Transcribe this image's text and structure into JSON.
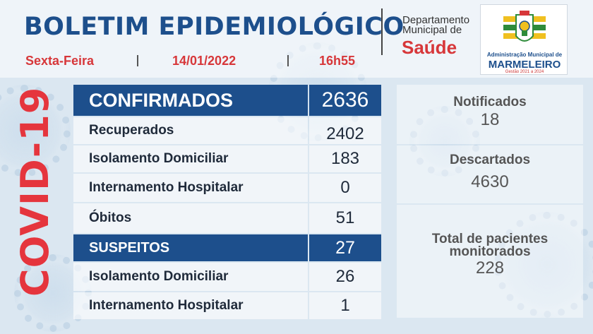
{
  "header": {
    "title": "BOLETIM EPIDEMIOLÓGICO",
    "weekday": "Sexta-Feira",
    "date": "14/01/2022",
    "time": "16h55",
    "department_line1": "Departamento",
    "department_line2": "Municipal de",
    "department_name": "Saúde"
  },
  "logo": {
    "line1": "Administração Municipal de",
    "line2": "MARMELEIRO",
    "line3": "Gestão 2021 a 2024"
  },
  "side_label": "COVID-19",
  "colors": {
    "brand_blue": "#1d4f8c",
    "accent_red": "#e5353d"
  },
  "confirmed": {
    "label": "CONFIRMADOS",
    "value": "2636",
    "rows": [
      {
        "label": "Recuperados",
        "value": "2402"
      },
      {
        "label": "Isolamento Domiciliar",
        "value": "183"
      },
      {
        "label": "Internamento Hospitalar",
        "value": "0"
      },
      {
        "label": "Óbitos",
        "value": "51"
      }
    ]
  },
  "suspects": {
    "label": "SUSPEITOS",
    "value": "27",
    "rows": [
      {
        "label": "Isolamento Domiciliar",
        "value": "26"
      },
      {
        "label": "Internamento Hospitalar",
        "value": "1"
      }
    ]
  },
  "side_stats": {
    "notified_label": "Notificados",
    "notified_value": "18",
    "discarded_label": "Descartados",
    "discarded_value": "4630",
    "monitored_label_line1": "Total de pacientes",
    "monitored_label_line2": "monitorados",
    "monitored_value": "228"
  }
}
